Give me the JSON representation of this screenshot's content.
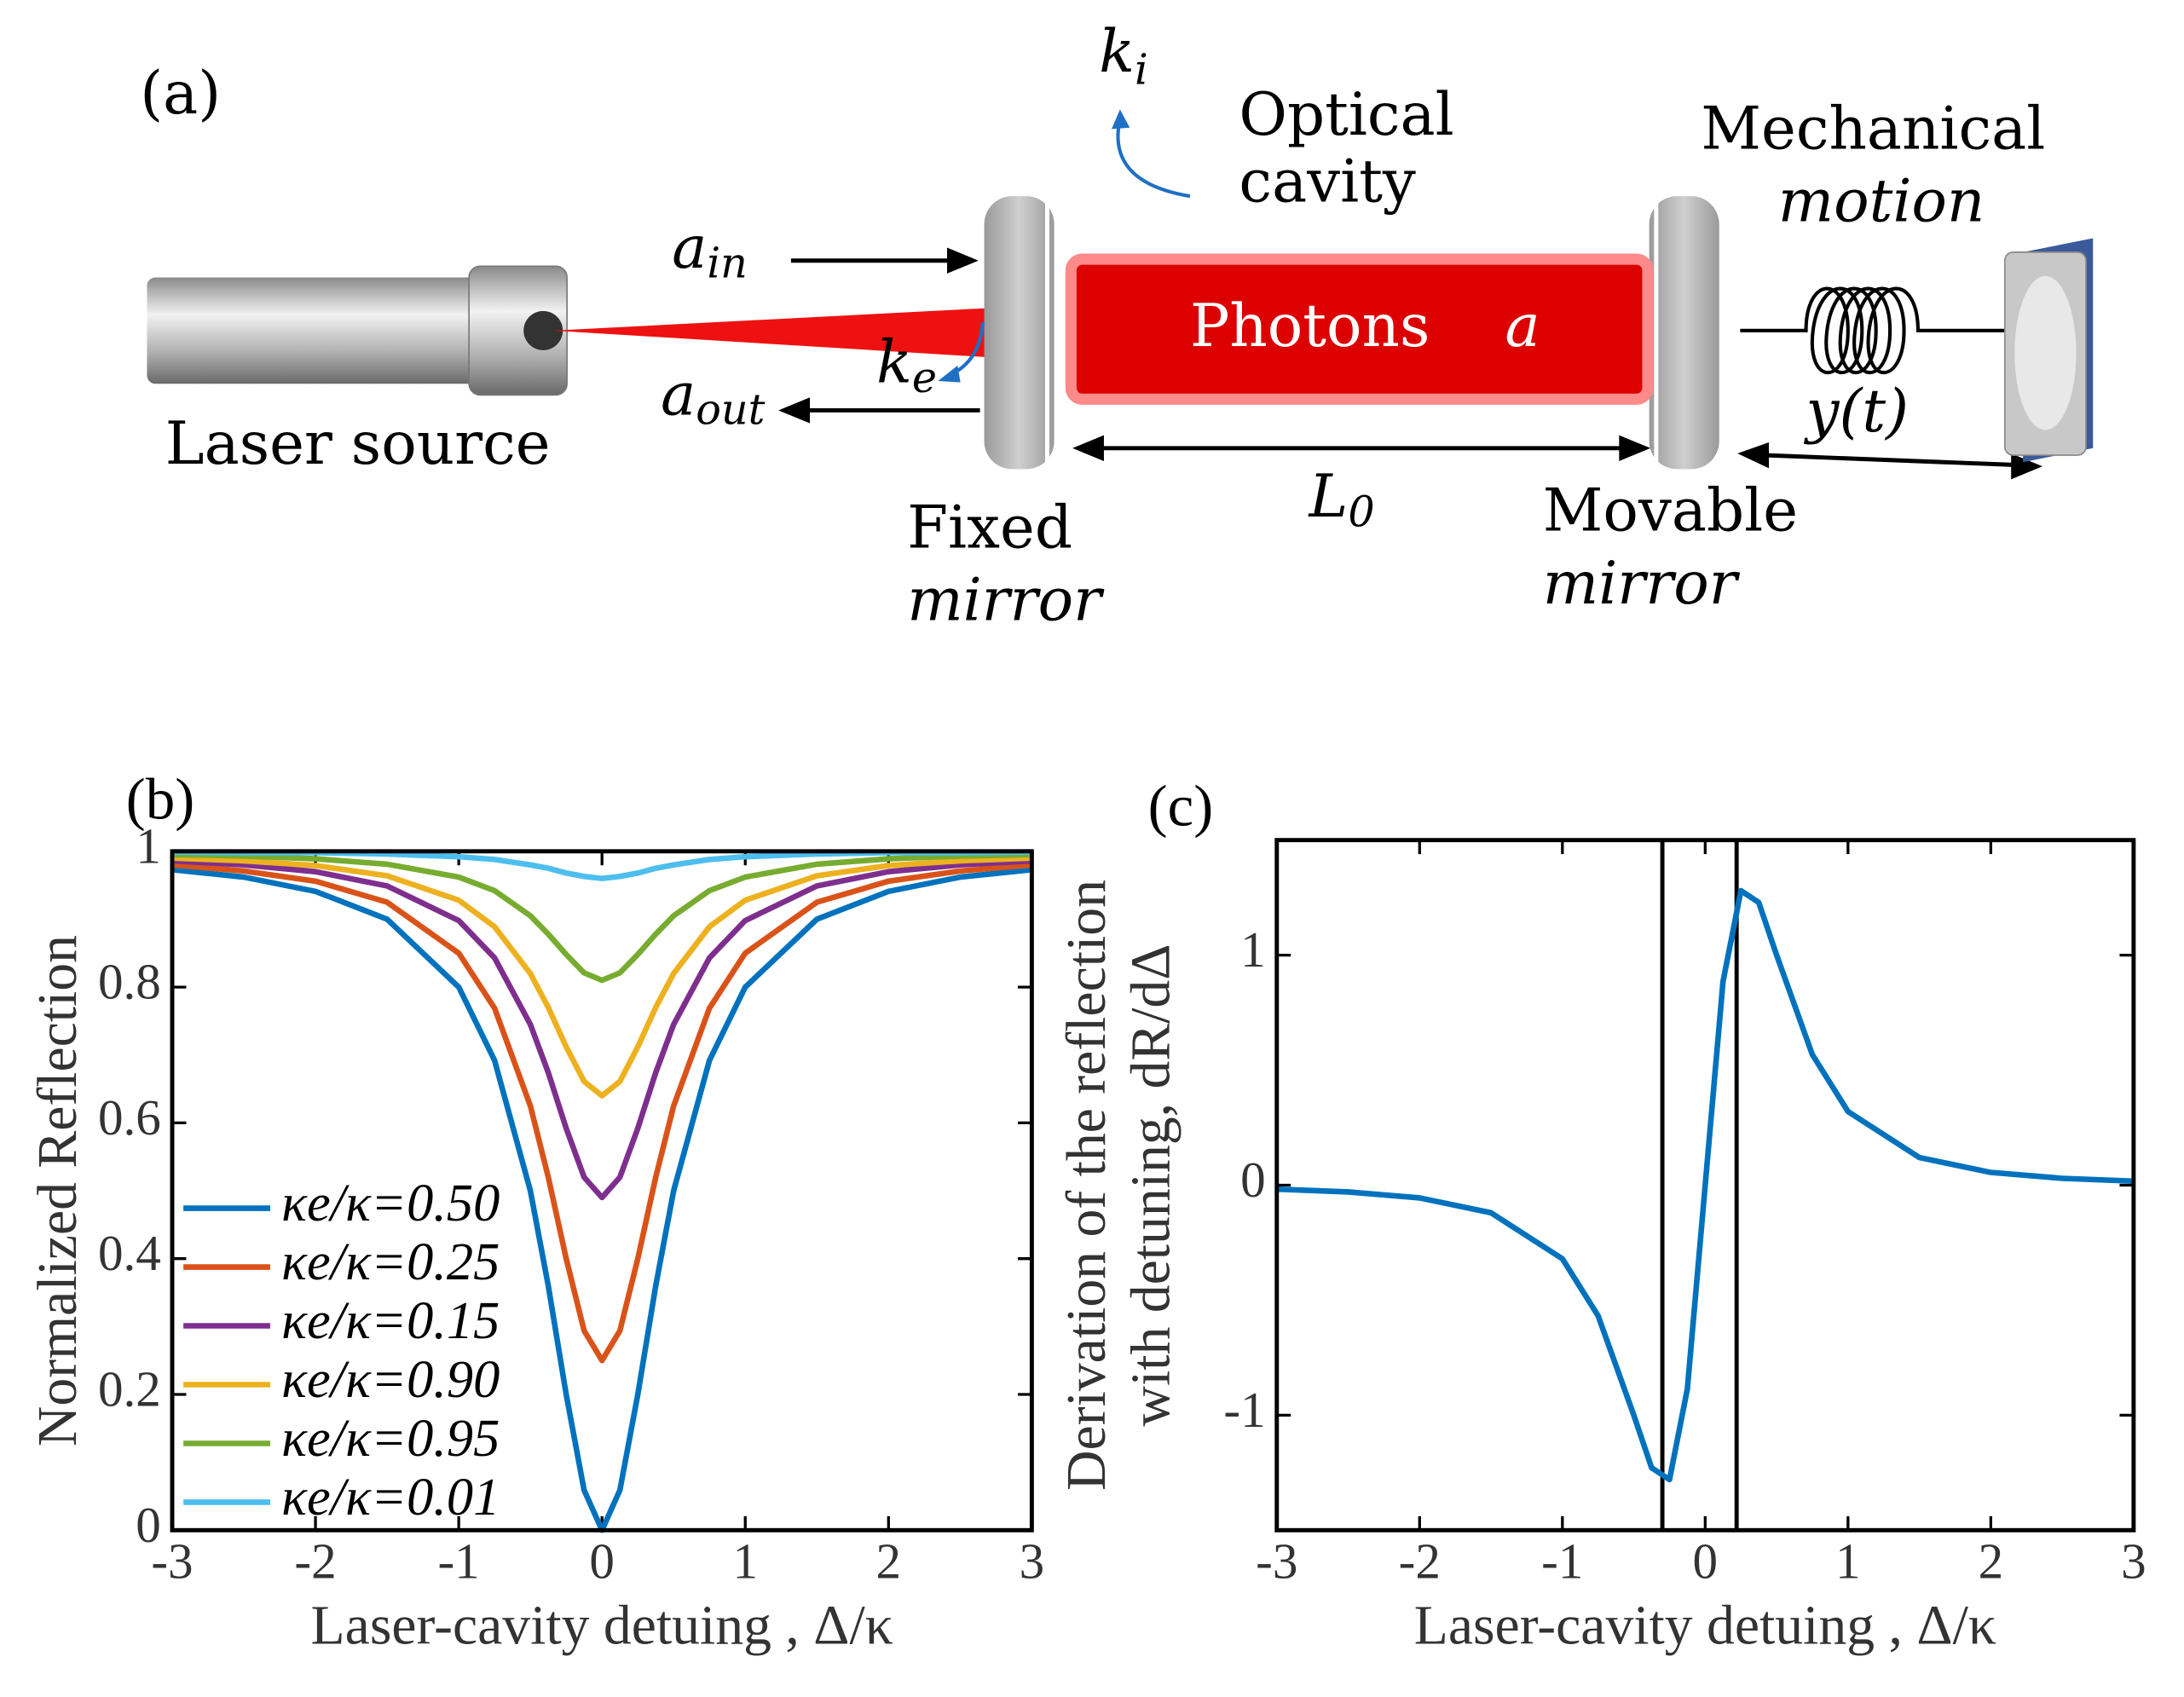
{
  "diagram": {
    "label": "(a)",
    "laser": "Laser source",
    "cavity": [
      "Optical",
      "cavity"
    ],
    "mechanical": [
      "Mechanical",
      "motion"
    ],
    "photons": "Photons",
    "photons_symbol": "a",
    "fixed": [
      "Fixed",
      "mirror"
    ],
    "movable": [
      "Movable",
      "mirror"
    ],
    "displacement": "y(t)",
    "length": {
      "text": "L",
      "sub": "0"
    },
    "input": {
      "text": "a",
      "sub": "in"
    },
    "output": {
      "text": "a",
      "sub": "out"
    },
    "external_loss": {
      "text": "k",
      "sub": "e"
    },
    "internal_loss": {
      "text": "k",
      "sub": "i"
    }
  },
  "chart_data": [
    {
      "type": "line",
      "label": "(b)",
      "x_label": "Laser-cavity detuing , Δ/κ",
      "y_label": [
        "Normalized Reflection"
      ],
      "x": [
        -3,
        -2.5,
        -2,
        -1.5,
        -1,
        -0.75,
        -0.5,
        -0.375,
        -0.25,
        -0.125,
        0,
        0.125,
        0.25,
        0.375,
        0.5,
        0.75,
        1,
        1.5,
        2,
        2.5,
        3
      ],
      "xlim": [
        -3,
        3
      ],
      "xticks": [
        -3,
        -2,
        -1,
        0,
        1,
        2,
        3
      ],
      "ylim": [
        0,
        1
      ],
      "yticks": [
        0,
        0.2,
        0.4,
        0.6,
        0.8,
        1
      ],
      "legend": "lower left",
      "series": [
        {
          "name": "κe/κ=0.50",
          "color": "#0072bd",
          "values": [
            0.973,
            0.962,
            0.941,
            0.9,
            0.8,
            0.692,
            0.5,
            0.36,
            0.2,
            0.059,
            0,
            0.059,
            0.2,
            0.36,
            0.5,
            0.692,
            0.8,
            0.9,
            0.941,
            0.962,
            0.973
          ]
        },
        {
          "name": "κe/κ=0.25",
          "color": "#d95319",
          "values": [
            0.98,
            0.971,
            0.956,
            0.925,
            0.85,
            0.769,
            0.625,
            0.52,
            0.4,
            0.294,
            0.25,
            0.294,
            0.4,
            0.52,
            0.625,
            0.769,
            0.85,
            0.925,
            0.956,
            0.971,
            0.98
          ]
        },
        {
          "name": "κe/κ=0.15",
          "color": "#7e2f8e",
          "values": [
            0.986,
            0.98,
            0.97,
            0.949,
            0.898,
            0.843,
            0.745,
            0.674,
            0.592,
            0.52,
            0.49,
            0.52,
            0.592,
            0.674,
            0.745,
            0.843,
            0.898,
            0.949,
            0.97,
            0.98,
            0.986
          ]
        },
        {
          "name": "κe/κ=0.90",
          "color": "#edb120",
          "values": [
            0.99,
            0.986,
            0.979,
            0.964,
            0.928,
            0.889,
            0.82,
            0.77,
            0.712,
            0.661,
            0.64,
            0.661,
            0.712,
            0.77,
            0.82,
            0.889,
            0.928,
            0.964,
            0.979,
            0.986,
            0.99
          ]
        },
        {
          "name": "κe/κ=0.95",
          "color": "#77ac30",
          "values": [
            0.995,
            0.993,
            0.989,
            0.981,
            0.962,
            0.942,
            0.905,
            0.878,
            0.848,
            0.821,
            0.81,
            0.821,
            0.848,
            0.878,
            0.905,
            0.942,
            0.962,
            0.981,
            0.989,
            0.993,
            0.995
          ]
        },
        {
          "name": "κe/κ=0.01",
          "color": "#4dbeee",
          "values": [
            0.999,
            0.998,
            0.998,
            0.996,
            0.992,
            0.988,
            0.98,
            0.975,
            0.968,
            0.963,
            0.96,
            0.963,
            0.968,
            0.975,
            0.98,
            0.988,
            0.992,
            0.996,
            0.998,
            0.998,
            0.999
          ]
        }
      ]
    },
    {
      "type": "line",
      "label": "(c)",
      "x_label": "Laser-cavity detuing , Δ/κ",
      "y_label": [
        "Derivation of the reflection",
        "with detuning, dR/dΔ"
      ],
      "x": [
        -3,
        -2.5,
        -2,
        -1.5,
        -1,
        -0.75,
        -0.5,
        -0.375,
        -0.25,
        -0.125,
        0,
        0.125,
        0.25,
        0.375,
        0.5,
        0.75,
        1,
        1.5,
        2,
        2.5,
        3
      ],
      "xlim": [
        -3,
        3
      ],
      "xticks": [
        -3,
        -2,
        -1,
        0,
        1,
        2,
        3
      ],
      "ylim": [
        -1.5,
        1.5
      ],
      "yticks": [
        -1,
        0,
        1
      ],
      "vlines": [
        -0.3,
        0.22
      ],
      "series": [
        {
          "color": "#0072bd",
          "values": [
            -0.0175,
            -0.0296,
            -0.0554,
            -0.12,
            -0.32,
            -0.568,
            -1,
            -1.229,
            -1.28,
            -0.886,
            0,
            0.886,
            1.28,
            1.229,
            1,
            0.568,
            0.32,
            0.12,
            0.0554,
            0.0296,
            0.0175
          ]
        }
      ]
    }
  ]
}
